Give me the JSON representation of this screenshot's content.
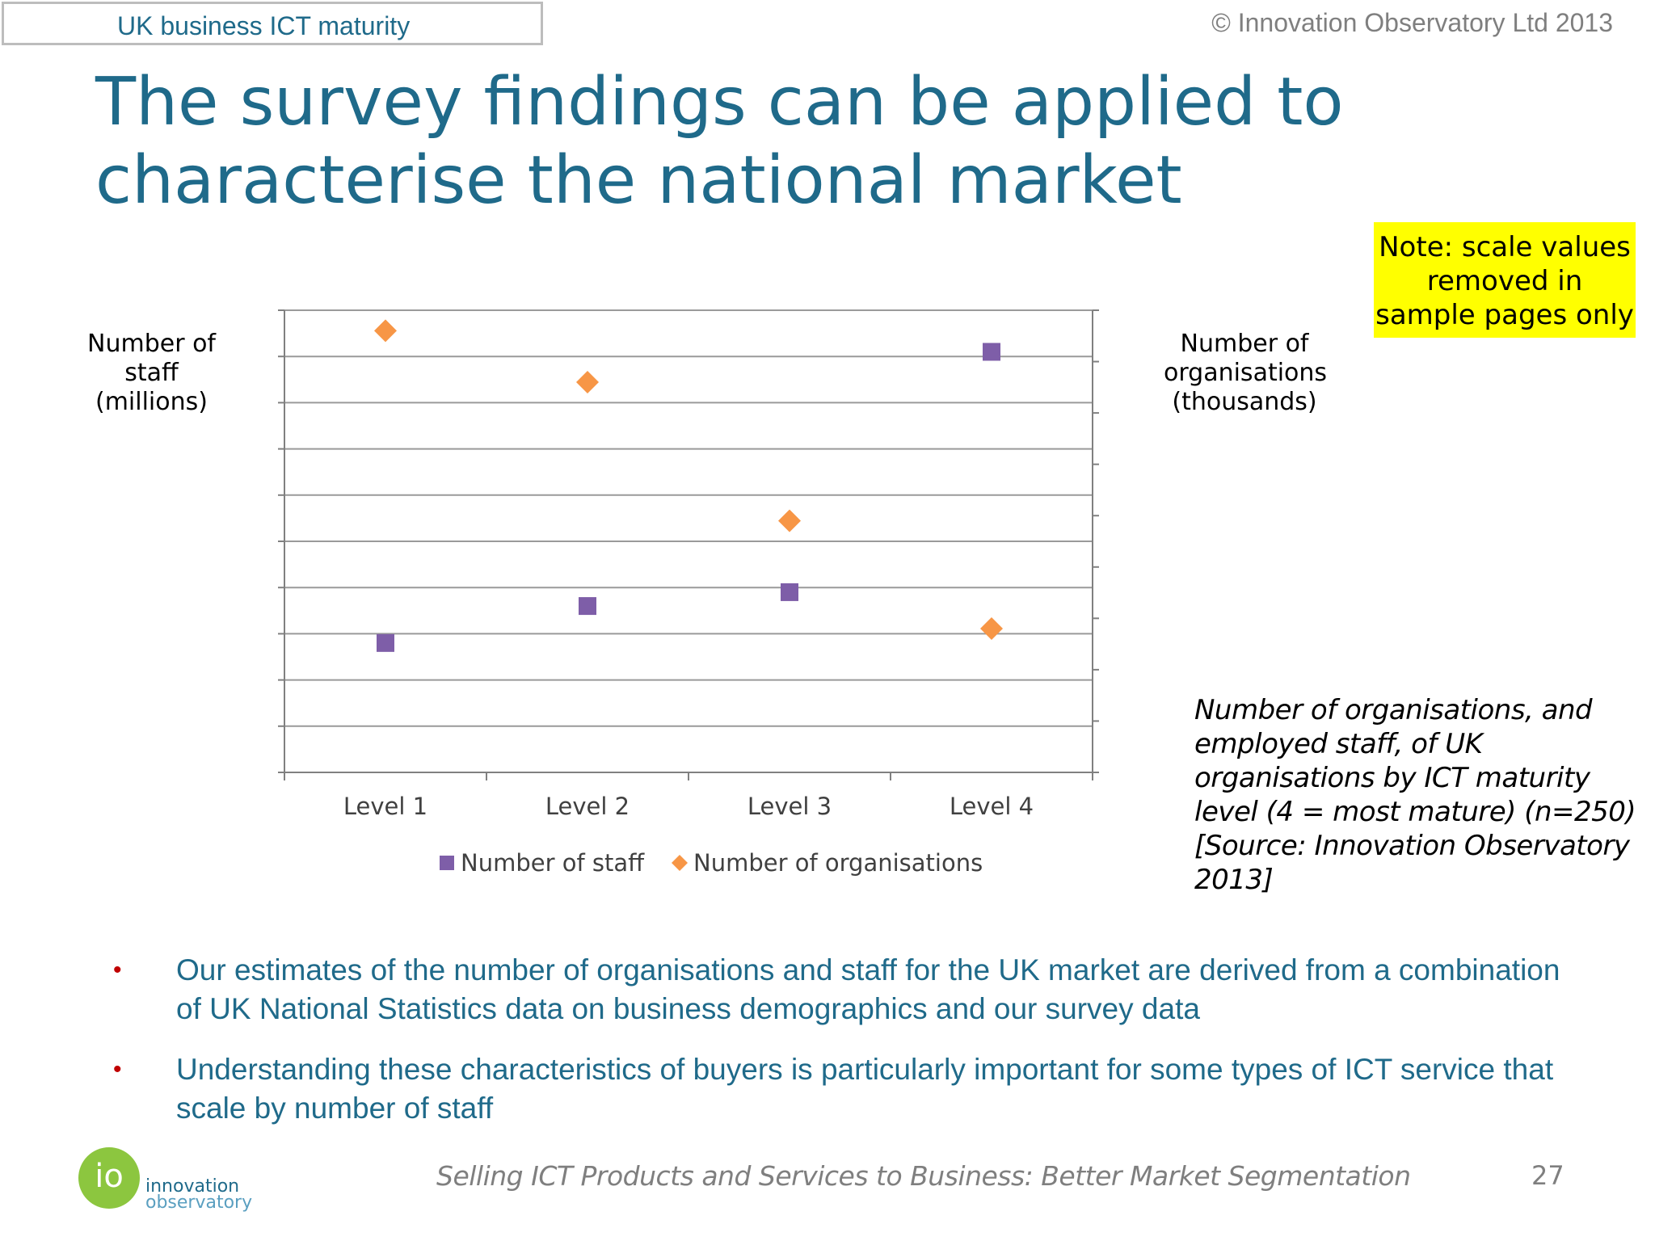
{
  "header": {
    "tag": "UK business ICT maturity",
    "copyright": "© Innovation Observatory Ltd 2013"
  },
  "title": "The survey findings can be applied to characterise the national market",
  "note": "Note: scale values removed in sample pages only",
  "axis_labels": {
    "left": "Number of staff (millions)",
    "right": "Number of organisations (thousands)"
  },
  "caption": "Number of organisations, and employed staff, of UK organisations by ICT maturity level (4 = most mature) (n=250) [Source: Innovation Observatory 2013]",
  "chart_data": {
    "type": "scatter",
    "categories": [
      "Level 1",
      "Level 2",
      "Level 3",
      "Level 4"
    ],
    "series": [
      {
        "name": "Number of staff",
        "axis": "left",
        "marker": "square",
        "color": "#7e5ea8",
        "values": [
          2.8,
          3.6,
          3.9,
          9.1
        ]
      },
      {
        "name": "Number of organisations",
        "axis": "right",
        "marker": "diamond",
        "color": "#f79646",
        "values": [
          8.6,
          7.6,
          4.9,
          2.8
        ]
      }
    ],
    "ylim_left": [
      0,
      10
    ],
    "ylim_right": [
      0,
      9
    ],
    "grid": true,
    "legend": "bottom",
    "tick_labels_shown": false
  },
  "bullets": [
    "Our estimates of the number of organisations and staff for the UK market are derived from a combination of UK National Statistics data on business demographics and our survey data",
    "Understanding these characteristics of buyers is particularly important for some types of ICT service that scale by number of staff"
  ],
  "logo": {
    "mark": "io",
    "line1": "innovation",
    "line2": "observatory"
  },
  "footer": {
    "text": "Selling ICT Products and Services to Business: Better Market  Segmentation",
    "page": "27"
  }
}
